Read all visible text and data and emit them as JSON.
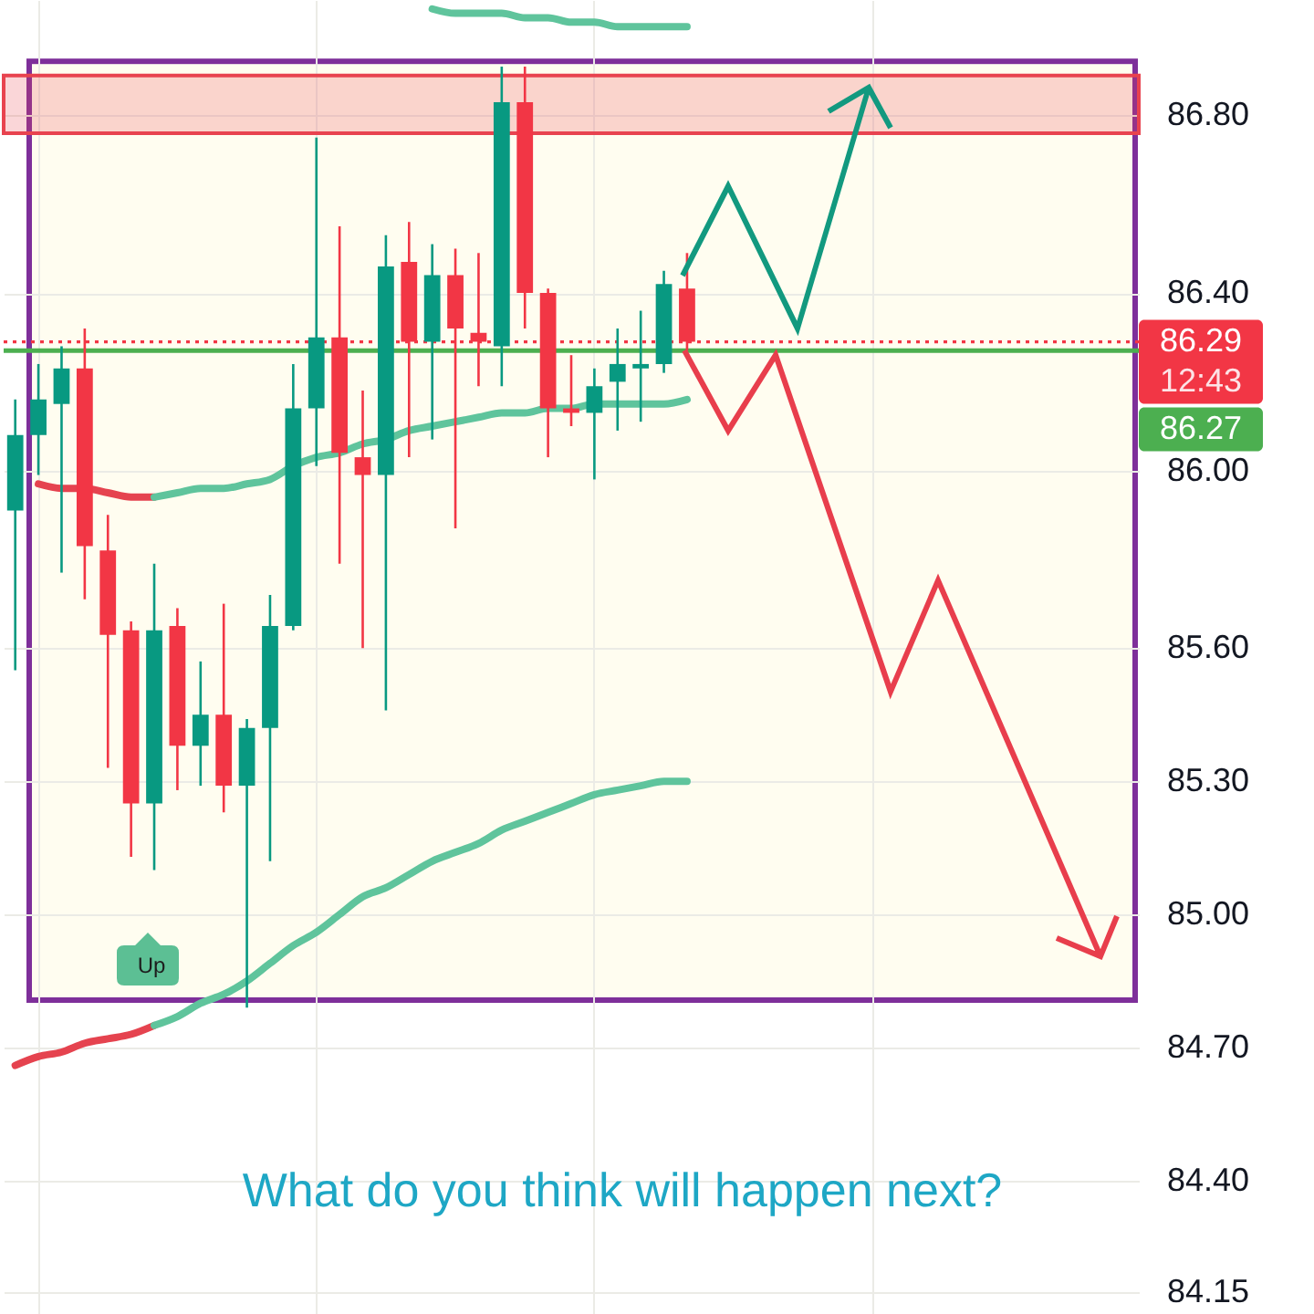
{
  "chart_data": {
    "type": "candlestick",
    "categories": [
      null,
      null,
      null,
      null,
      null,
      null,
      null,
      null,
      null,
      null,
      null,
      null,
      null,
      null,
      null,
      null,
      null,
      null,
      null,
      null,
      null,
      null,
      null,
      null,
      null,
      null,
      null,
      null,
      null,
      null,
      null,
      null,
      null,
      null,
      null,
      null,
      null,
      null,
      null,
      null,
      null,
      null,
      null,
      null,
      null,
      null,
      null,
      null,
      null
    ],
    "ohlc": [
      [
        85.91,
        86.16,
        85.55,
        86.08
      ],
      [
        86.08,
        86.24,
        85.99,
        86.16
      ],
      [
        86.15,
        86.28,
        85.77,
        86.23
      ],
      [
        86.23,
        86.32,
        85.71,
        85.83
      ],
      [
        85.82,
        85.9,
        85.33,
        85.63
      ],
      [
        85.64,
        85.66,
        85.13,
        85.25
      ],
      [
        85.25,
        85.79,
        85.1,
        85.64
      ],
      [
        85.65,
        85.69,
        85.28,
        85.38
      ],
      [
        85.38,
        85.57,
        85.29,
        85.45
      ],
      [
        85.45,
        85.7,
        85.23,
        85.29
      ],
      [
        85.29,
        85.44,
        84.79,
        85.42
      ],
      [
        85.42,
        85.72,
        85.12,
        85.65
      ],
      [
        85.65,
        86.24,
        85.64,
        86.14
      ],
      [
        86.14,
        86.75,
        86.01,
        86.3
      ],
      [
        86.3,
        86.55,
        85.79,
        86.04
      ],
      [
        86.03,
        86.18,
        85.6,
        85.99
      ],
      [
        85.99,
        86.53,
        85.46,
        86.46
      ],
      [
        86.47,
        86.56,
        86.03,
        86.29
      ],
      [
        86.29,
        86.51,
        86.07,
        86.44
      ],
      [
        86.44,
        86.5,
        85.87,
        86.32
      ],
      [
        86.31,
        86.49,
        86.19,
        86.29
      ],
      [
        86.28,
        86.91,
        86.19,
        86.83
      ],
      [
        86.83,
        86.91,
        86.32,
        86.4
      ],
      [
        86.4,
        86.41,
        86.03,
        86.14
      ],
      [
        86.14,
        86.26,
        86.1,
        86.13
      ],
      [
        86.13,
        86.23,
        85.98,
        86.19
      ],
      [
        86.2,
        86.32,
        86.09,
        86.24
      ],
      [
        86.23,
        86.36,
        86.11,
        86.24
      ],
      [
        86.24,
        86.45,
        86.22,
        86.42
      ],
      [
        86.41,
        86.49,
        86.27,
        86.29
      ],
      null,
      null,
      null,
      null,
      null,
      null,
      null,
      null,
      null,
      null,
      null,
      null,
      null,
      null,
      null,
      null,
      null,
      null,
      null
    ],
    "colors": [
      "#089981",
      "#089981",
      "#089981",
      "#f23645",
      "#f23645",
      "#f23645",
      "#089981",
      "#f23645",
      "#089981",
      "#f23645",
      "#089981",
      "#089981",
      "#089981",
      "#089981",
      "#f23645",
      "#f23645",
      "#089981",
      "#f23645",
      "#089981",
      "#f23645",
      "#f23645",
      "#089981",
      "#f23645",
      "#f23645",
      "#f23645",
      "#089981",
      "#089981",
      "#089981",
      "#089981",
      "#f23645",
      null,
      null,
      null,
      null,
      null,
      null,
      null,
      null,
      null,
      null,
      null,
      null,
      null,
      null,
      null,
      null,
      null,
      null,
      null
    ],
    "series": [
      {
        "type": "line",
        "color": "#5fc49c",
        "values": [
          null,
          null,
          null,
          null,
          null,
          null,
          null,
          null,
          null,
          null,
          null,
          null,
          null,
          null,
          null,
          null,
          null,
          null,
          87.04,
          87.03,
          87.03,
          87.03,
          87.02,
          87.02,
          87.01,
          87.01,
          87.0,
          87.0,
          87.0,
          87.0,
          null,
          null,
          null,
          null,
          null,
          null,
          null,
          null,
          null,
          null,
          null,
          null,
          null,
          null,
          null,
          null,
          null,
          null,
          null
        ]
      },
      {
        "type": "line",
        "color": "#e5434f",
        "values": [
          null,
          85.97,
          85.96,
          85.96,
          85.95,
          85.94,
          85.94,
          null,
          null,
          null,
          null,
          null,
          null,
          null,
          null,
          null,
          null,
          null,
          null,
          null,
          null,
          null,
          null,
          null,
          null,
          null,
          null,
          null,
          null,
          null,
          null,
          null,
          null,
          null,
          null,
          null,
          null,
          null,
          null,
          null,
          null,
          null,
          null,
          null,
          null,
          null,
          null,
          null,
          null
        ]
      },
      {
        "type": "line",
        "color": "#5fc49c",
        "values": [
          null,
          null,
          null,
          null,
          null,
          null,
          85.94,
          85.95,
          85.96,
          85.96,
          85.97,
          85.98,
          86.01,
          86.03,
          86.04,
          86.06,
          86.07,
          86.09,
          86.1,
          86.11,
          86.12,
          86.13,
          86.13,
          86.14,
          86.14,
          86.15,
          86.15,
          86.15,
          86.15,
          86.16,
          null,
          null,
          null,
          null,
          null,
          null,
          null,
          null,
          null,
          null,
          null,
          null,
          null,
          null,
          null,
          null,
          null,
          null,
          null
        ]
      },
      {
        "type": "line",
        "color": "#e5434f",
        "values": [
          84.66,
          84.68,
          84.69,
          84.71,
          84.72,
          84.73,
          84.75,
          null,
          null,
          null,
          null,
          null,
          null,
          null,
          null,
          null,
          null,
          null,
          null,
          null,
          null,
          null,
          null,
          null,
          null,
          null,
          null,
          null,
          null,
          null,
          null,
          null,
          null,
          null,
          null,
          null,
          null,
          null,
          null,
          null,
          null,
          null,
          null,
          null,
          null,
          null,
          null,
          null,
          null
        ]
      },
      {
        "type": "line",
        "color": "#5fc49c",
        "values": [
          null,
          null,
          null,
          null,
          null,
          null,
          84.75,
          84.77,
          84.8,
          84.82,
          84.85,
          84.89,
          84.93,
          84.96,
          85.0,
          85.04,
          85.06,
          85.09,
          85.12,
          85.14,
          85.16,
          85.19,
          85.21,
          85.23,
          85.25,
          85.27,
          85.28,
          85.29,
          85.3,
          85.3,
          null,
          null,
          null,
          null,
          null,
          null,
          null,
          null,
          null,
          null,
          null,
          null,
          null,
          null,
          null,
          null,
          null,
          null,
          null
        ]
      }
    ],
    "ylim": [
      84.1,
      87.06
    ],
    "yticks": [
      {
        "value": 86.8,
        "label": "86.80"
      },
      {
        "value": 86.4,
        "label": "86.40"
      },
      {
        "value": 86.0,
        "label": "86.00"
      },
      {
        "value": 85.6,
        "label": "85.60"
      },
      {
        "value": 85.3,
        "label": "85.30"
      },
      {
        "value": 85.0,
        "label": "85.00"
      },
      {
        "value": 84.7,
        "label": "84.70"
      },
      {
        "value": 84.4,
        "label": "84.40"
      },
      84.15
    ],
    "tick_labels": "y",
    "grid": true,
    "ref_lines": [
      {
        "axis": "y",
        "value": 86.29,
        "label": "86.29",
        "color": "#f23645",
        "line_style": "dotted"
      },
      {
        "axis": "y",
        "value": 86.27,
        "label": "86.27",
        "color": "#4caf50"
      }
    ],
    "bands": [
      {
        "axis": "y",
        "from": 86.76,
        "to": 86.89,
        "color": "#e8434f"
      }
    ],
    "annotations": [
      "Up",
      "12:43",
      "What do you think will happen next?"
    ]
  }
}
